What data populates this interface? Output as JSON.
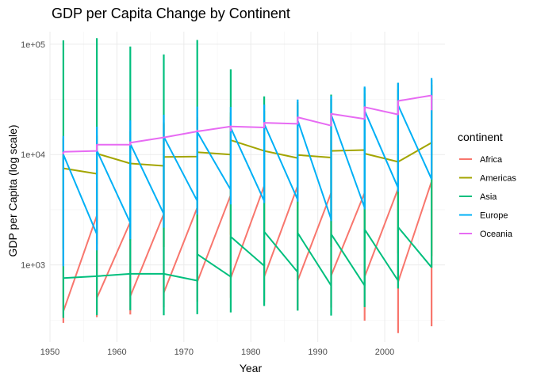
{
  "chart_data": {
    "type": "line",
    "title": "GDP per Capita Change by Continent",
    "xlabel": "Year",
    "ylabel": "GDP per Capita (log scale)",
    "xlim": [
      1950,
      2009
    ],
    "ylim": [
      200,
      130000
    ],
    "y_scale": "log",
    "grid": true,
    "x_ticks": [
      {
        "value": 1950,
        "label": "1950"
      },
      {
        "value": 1960,
        "label": "1960"
      },
      {
        "value": 1970,
        "label": "1970"
      },
      {
        "value": 1980,
        "label": "1980"
      },
      {
        "value": 1990,
        "label": "1990"
      },
      {
        "value": 2000,
        "label": "2000"
      }
    ],
    "y_ticks": [
      {
        "value": 1000,
        "label": "1e+03"
      },
      {
        "value": 10000,
        "label": "1e+04"
      },
      {
        "value": 100000,
        "label": "1e+05"
      }
    ],
    "x": [
      1952,
      1957,
      1962,
      1967,
      1972,
      1977,
      1982,
      1987,
      1992,
      1997,
      2002,
      2007
    ],
    "legend": {
      "title": "continent",
      "position": "right"
    },
    "series": [
      {
        "name": "Africa",
        "color": "#F8766D",
        "ranges": [
          [
            298,
            4725
          ],
          [
            336,
            5487
          ],
          [
            355,
            6757
          ],
          [
            413,
            18773
          ],
          [
            464,
            21011
          ],
          [
            502,
            21951
          ],
          [
            462,
            17364
          ],
          [
            390,
            11864
          ],
          [
            410,
            13522
          ],
          [
            312,
            14723
          ],
          [
            241,
            12522
          ],
          [
            278,
            13206
          ]
        ],
        "path": [
          [
            1952,
            380
          ],
          [
            1957,
            2800
          ],
          [
            1957,
            500
          ],
          [
            1962,
            2450
          ],
          [
            1962,
            520
          ],
          [
            1967,
            2900
          ],
          [
            1967,
            560
          ],
          [
            1972,
            3300
          ],
          [
            1972,
            700
          ],
          [
            1977,
            4300
          ],
          [
            1977,
            760
          ],
          [
            1982,
            5200
          ],
          [
            1982,
            780
          ],
          [
            1987,
            5200
          ],
          [
            1987,
            720
          ],
          [
            1992,
            4500
          ],
          [
            1992,
            800
          ],
          [
            1997,
            4500
          ],
          [
            1997,
            780
          ],
          [
            2002,
            4900
          ],
          [
            2002,
            700
          ],
          [
            2007,
            5700
          ]
        ]
      },
      {
        "name": "Americas",
        "color": "#A3A500",
        "ranges": [
          [
            1398,
            13990
          ],
          [
            1544,
            14847
          ],
          [
            1662,
            16173
          ],
          [
            1452,
            19530
          ],
          [
            1654,
            21806
          ],
          [
            1874,
            24073
          ],
          [
            2011,
            25010
          ],
          [
            1823,
            29884
          ],
          [
            1456,
            32004
          ],
          [
            1342,
            35767
          ],
          [
            1270,
            39097
          ],
          [
            1202,
            42952
          ]
        ],
        "path": [
          [
            1952,
            7500
          ],
          [
            1957,
            6700
          ],
          [
            1957,
            10200
          ],
          [
            1962,
            8300
          ],
          [
            1962,
            8300
          ],
          [
            1967,
            7900
          ],
          [
            1967,
            9500
          ],
          [
            1972,
            9600
          ],
          [
            1972,
            10500
          ],
          [
            1977,
            10000
          ],
          [
            1977,
            13500
          ],
          [
            1982,
            10800
          ],
          [
            1982,
            10800
          ],
          [
            1987,
            9300
          ],
          [
            1987,
            9900
          ],
          [
            1992,
            9400
          ],
          [
            1992,
            10800
          ],
          [
            1997,
            11000
          ],
          [
            1997,
            10200
          ],
          [
            2002,
            8600
          ],
          [
            2002,
            8600
          ],
          [
            2007,
            12800
          ]
        ]
      },
      {
        "name": "Asia",
        "color": "#00BF7D",
        "ranges": [
          [
            331,
            108382
          ],
          [
            350,
            113523
          ],
          [
            388,
            95458
          ],
          [
            349,
            80895
          ],
          [
            357,
            109348
          ],
          [
            371,
            59265
          ],
          [
            424,
            33693
          ],
          [
            385,
            28118
          ],
          [
            347,
            34933
          ],
          [
            415,
            40301
          ],
          [
            611,
            44684
          ],
          [
            944,
            47307
          ]
        ],
        "path": [
          [
            1952,
            760
          ],
          [
            1957,
            790
          ],
          [
            1957,
            790
          ],
          [
            1962,
            830
          ],
          [
            1962,
            830
          ],
          [
            1967,
            830
          ],
          [
            1967,
            830
          ],
          [
            1972,
            720
          ],
          [
            1972,
            1250
          ],
          [
            1977,
            780
          ],
          [
            1977,
            1800
          ],
          [
            1982,
            980
          ],
          [
            1982,
            2000
          ],
          [
            1987,
            860
          ],
          [
            1987,
            1950
          ],
          [
            1992,
            650
          ],
          [
            1992,
            1900
          ],
          [
            1997,
            650
          ],
          [
            1997,
            2100
          ],
          [
            2002,
            720
          ],
          [
            2002,
            2200
          ],
          [
            2007,
            950
          ]
        ]
      },
      {
        "name": "Europe",
        "color": "#00B0F6",
        "ranges": [
          [
            973,
            14734
          ],
          [
            1354,
            17909
          ],
          [
            1709,
            20431
          ],
          [
            2172,
            22966
          ],
          [
            2860,
            27195
          ],
          [
            3528,
            26982
          ],
          [
            3631,
            28398
          ],
          [
            3739,
            31541
          ],
          [
            2497,
            33966
          ],
          [
            3193,
            41283
          ],
          [
            4604,
            44684
          ],
          [
            5937,
            49357
          ]
        ],
        "path": [
          [
            1952,
            10000
          ],
          [
            1957,
            1900
          ],
          [
            1957,
            10900
          ],
          [
            1962,
            2400
          ],
          [
            1962,
            12500
          ],
          [
            1967,
            2900
          ],
          [
            1967,
            14500
          ],
          [
            1972,
            3800
          ],
          [
            1972,
            16000
          ],
          [
            1977,
            4800
          ],
          [
            1977,
            17500
          ],
          [
            1982,
            3800
          ],
          [
            1982,
            19000
          ],
          [
            1987,
            3900
          ],
          [
            1987,
            20500
          ],
          [
            1992,
            2600
          ],
          [
            1992,
            23000
          ],
          [
            1997,
            3300
          ],
          [
            1997,
            25000
          ],
          [
            2002,
            5000
          ],
          [
            2002,
            28000
          ],
          [
            2007,
            6000
          ]
        ]
      },
      {
        "name": "Oceania",
        "color": "#E76BF3",
        "ranges": [
          [
            10040,
            10556
          ],
          [
            10950,
            12247
          ],
          [
            12217,
            13176
          ],
          [
            14463,
            14526
          ],
          [
            16046,
            16789
          ],
          [
            16234,
            18334
          ],
          [
            17632,
            19477
          ],
          [
            19007,
            21889
          ],
          [
            18363,
            23425
          ],
          [
            21050,
            26998
          ],
          [
            23190,
            30688
          ],
          [
            25185,
            34435
          ]
        ],
        "path": [
          [
            1952,
            10600
          ],
          [
            1957,
            10800
          ],
          [
            1957,
            12300
          ],
          [
            1962,
            12300
          ],
          [
            1962,
            12800
          ],
          [
            1967,
            14300
          ],
          [
            1967,
            14300
          ],
          [
            1972,
            16200
          ],
          [
            1972,
            16200
          ],
          [
            1977,
            18000
          ],
          [
            1977,
            18000
          ],
          [
            1982,
            17600
          ],
          [
            1982,
            19400
          ],
          [
            1987,
            19000
          ],
          [
            1987,
            21800
          ],
          [
            1992,
            18300
          ],
          [
            1992,
            23400
          ],
          [
            1997,
            21000
          ],
          [
            1997,
            26900
          ],
          [
            2002,
            23100
          ],
          [
            2002,
            30600
          ],
          [
            2007,
            34400
          ]
        ]
      }
    ]
  }
}
